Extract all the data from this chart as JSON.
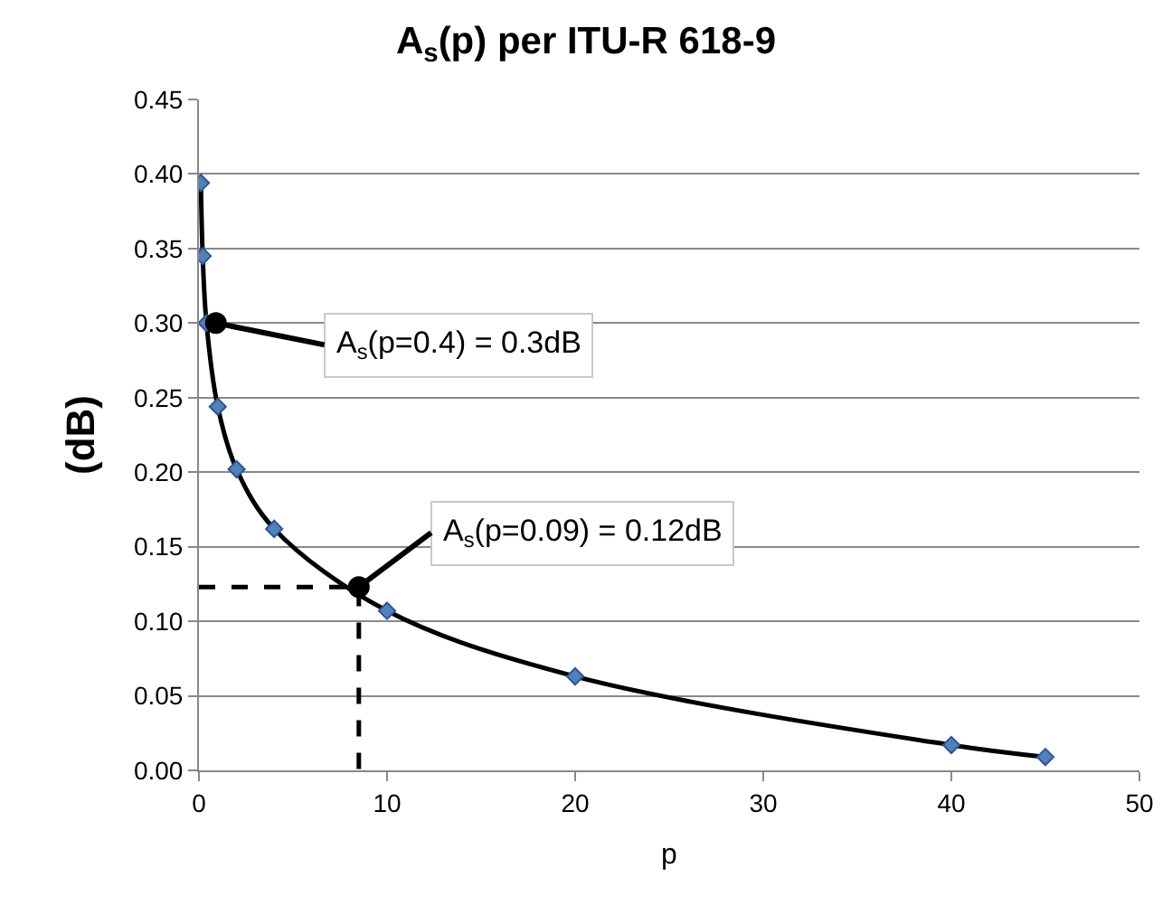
{
  "chart_data": {
    "type": "line",
    "title": "A$_{s}$(p) per ITU-R 618-9",
    "xlabel": "p",
    "ylabel": "(dB)",
    "xlim": [
      0,
      50
    ],
    "xticks": [
      0,
      10,
      20,
      30,
      40,
      50
    ],
    "ylim": [
      0,
      0.45
    ],
    "yticks": [
      {
        "value": 0,
        "label": "0.00"
      },
      {
        "value": 0.05,
        "label": "0.05"
      },
      {
        "value": 0.1,
        "label": "0.10"
      },
      {
        "value": 0.15,
        "label": "0.15"
      },
      {
        "value": 0.2,
        "label": "0.20"
      },
      {
        "value": 0.25,
        "label": "0.25"
      },
      {
        "value": 0.3,
        "label": "0.30"
      },
      {
        "value": 0.35,
        "label": "0.35"
      },
      {
        "value": 0.4,
        "label": "0.40"
      },
      {
        "value": 0.45,
        "label": "0.45"
      }
    ],
    "grid": "y",
    "series": [
      {
        "color": "#4f81bd",
        "marker": "diamond",
        "line_style": "solid",
        "x": [
          0.1,
          0.2,
          0.4,
          1,
          2,
          4,
          10,
          20,
          40,
          45
        ],
        "values": [
          0.394,
          0.345,
          0.3,
          0.244,
          0.202,
          0.162,
          0.107,
          0.063,
          0.017,
          0.009
        ]
      },
      {
        "type": "line",
        "color": "#000000",
        "marker": "none",
        "line_style": "dashed",
        "x": [
          0,
          8.5,
          8.5
        ],
        "values": [
          0.123,
          0.123,
          0
        ]
      },
      {
        "type": "scatter",
        "color": "#000000",
        "marker": "circle",
        "x": [
          0.9,
          8.5
        ],
        "values": [
          0.3,
          0.123
        ]
      }
    ],
    "annotations": [
      {
        "text": "A$_{s}$(p=0.4) = 0.3dB",
        "x": 0.9,
        "y": 0.3
      },
      {
        "text": "A$_{s}$(p=0.09) = 0.12dB",
        "x": 8.5,
        "y": 0.123
      }
    ]
  }
}
